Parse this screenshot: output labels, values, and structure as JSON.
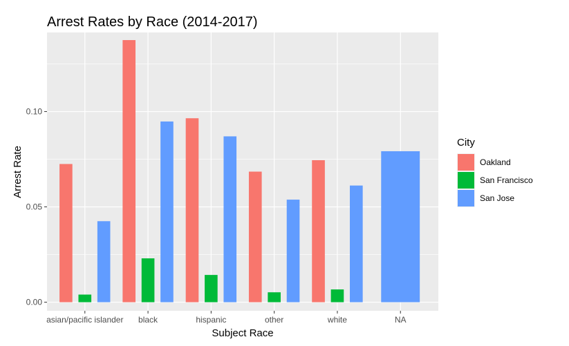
{
  "chart_data": {
    "type": "bar",
    "title": "Arrest Rates by Race (2014-2017)",
    "xlabel": "Subject Race",
    "ylabel": "Arrest Rate",
    "categories": [
      "asian/pacific islander",
      "black",
      "hispanic",
      "other",
      "white",
      "NA"
    ],
    "ylim": [
      -0.0045,
      0.1415
    ],
    "yticks": [
      0.0,
      0.05,
      0.1
    ],
    "ytick_labels": [
      "0.00",
      "0.05",
      "0.10"
    ],
    "series": [
      {
        "name": "Oakland",
        "color": "#F8766D",
        "values": [
          0.0725,
          0.1375,
          0.0965,
          0.0685,
          0.0745,
          null
        ]
      },
      {
        "name": "San Francisco",
        "color": "#00BA38",
        "values": [
          0.004,
          0.023,
          0.0143,
          0.0052,
          0.0067,
          null
        ]
      },
      {
        "name": "San Jose",
        "color": "#619CFF",
        "values": [
          0.0425,
          0.0948,
          0.087,
          0.0538,
          0.0612,
          0.0792
        ]
      }
    ],
    "legend": {
      "title": "City",
      "position": "right"
    },
    "grid": true,
    "panel_background": "#EBEBEB"
  }
}
